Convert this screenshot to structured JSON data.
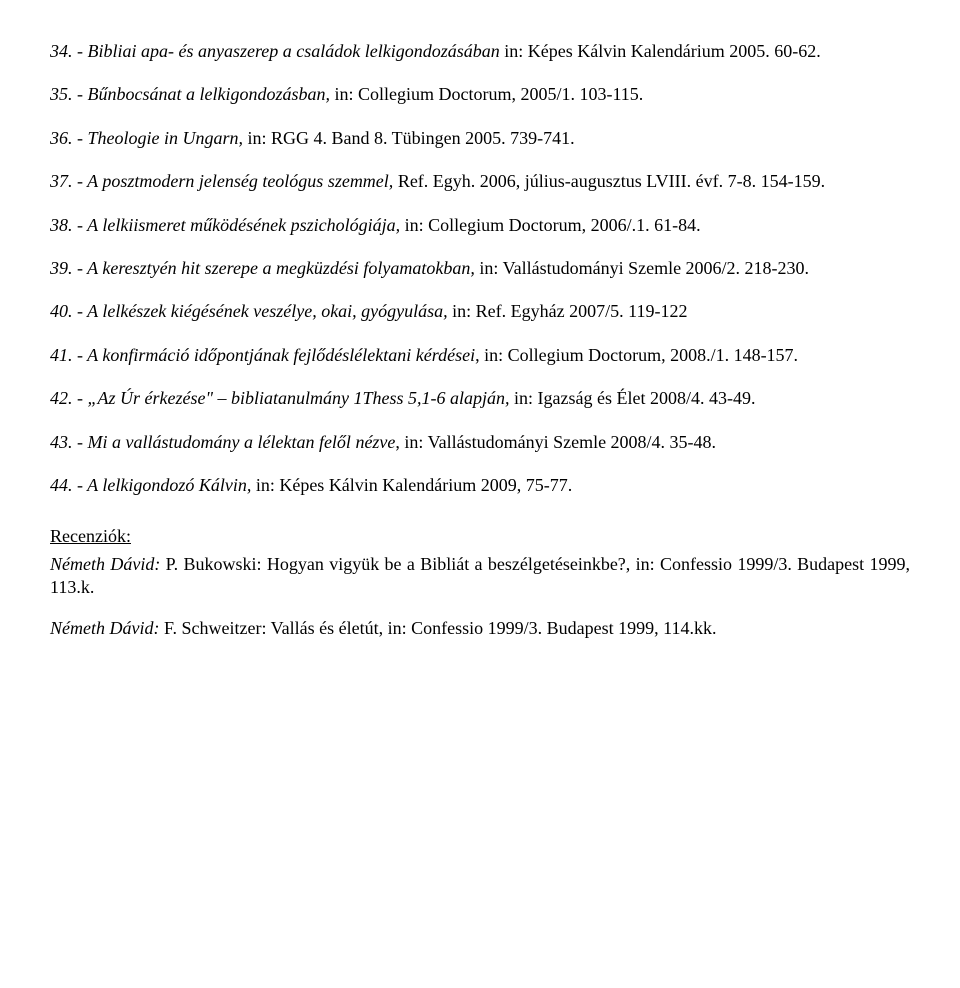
{
  "entries": [
    {
      "num": "34.",
      "title": "- Bibliai apa- és anyaszerep a családok lelkigondozásában",
      "rest": " in: Képes Kálvin Kalendárium 2005. 60-62."
    },
    {
      "num": "35.",
      "title": "- Bűnbocsánat a lelkigondozásban,",
      "rest": " in: Collegium Doctorum, 2005/1. 103-115."
    },
    {
      "num": "36.",
      "title": "- Theologie in Ungarn,",
      "rest": " in: RGG 4. Band 8. Tübingen 2005. 739-741."
    },
    {
      "num": "37.",
      "title": "- A posztmodern jelenség teológus szemmel,",
      "rest": " Ref. Egyh. 2006, július-augusztus LVIII. évf. 7-8. 154-159."
    },
    {
      "num": "38.",
      "title": "- A lelkiismeret működésének pszichológiája,",
      "rest": " in: Collegium Doctorum, 2006/.1. 61-84."
    },
    {
      "num": "39.",
      "title": "- A keresztyén hit szerepe a megküzdési folyamatokban,",
      "rest": " in: Vallástudományi Szemle 2006/2. 218-230."
    },
    {
      "num": "40.",
      "title": "- A lelkészek kiégésének veszélye, okai, gyógyulása,",
      "rest": " in: Ref. Egyház 2007/5. 119-122"
    },
    {
      "num": "41.",
      "title": "- A konfirmáció időpontjának fejlődéslélektani kérdései",
      "rest": ", in: Collegium Doctorum, 2008./1. 148-157."
    },
    {
      "num": "42.",
      "title": "- „Az Úr érkezése\" – bibliatanulmány 1Thess 5,1-6 alapján,",
      "rest": " in: Igazság és Élet 2008/4. 43-49."
    },
    {
      "num": "43.",
      "title": "- Mi a vallástudomány a lélektan felől nézve",
      "rest": ", in: Vallástudományi Szemle 2008/4. 35-48."
    },
    {
      "num": "44.",
      "title": "- A lelkigondozó Kálvin,",
      "rest": " in: Képes Kálvin Kalendárium 2009, 75-77."
    }
  ],
  "section_heading": "Recenziók:",
  "recenziok": [
    {
      "author": "Németh Dávid:",
      "rest": " P. Bukowski: Hogyan vigyük be a Bibliát a beszélgetéseinkbe?, in: Confessio 1999/3. Budapest 1999,  113.k."
    },
    {
      "author": "Németh Dávid:",
      "rest": " F. Schweitzer: Vallás és életút, in: Confessio 1999/3. Budapest 1999,  114.kk."
    }
  ]
}
